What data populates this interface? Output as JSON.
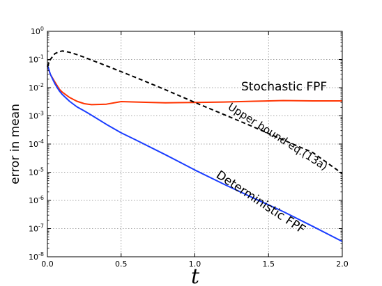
{
  "chart_data": {
    "type": "line",
    "xlabel": "t",
    "ylabel": "error in mean",
    "xscale": "linear",
    "yscale": "log",
    "xlim": [
      0.0,
      2.0
    ],
    "ylim": [
      1e-08,
      1
    ],
    "grid": true,
    "x_ticks": [
      "0.0",
      "0.5",
      "1.0",
      "1.5",
      "2.0"
    ],
    "y_ticks": [
      {
        "base": "10",
        "exp": "-8"
      },
      {
        "base": "10",
        "exp": "-7"
      },
      {
        "base": "10",
        "exp": "-6"
      },
      {
        "base": "10",
        "exp": "-5"
      },
      {
        "base": "10",
        "exp": "-4"
      },
      {
        "base": "10",
        "exp": "-3"
      },
      {
        "base": "10",
        "exp": "-2"
      },
      {
        "base": "10",
        "exp": "-1"
      },
      {
        "base": "10",
        "exp": "0"
      }
    ],
    "series": [
      {
        "name": "Stochastic FPF",
        "color": "#ff3300",
        "style": "solid",
        "x": [
          0.0,
          0.02,
          0.05,
          0.08,
          0.1,
          0.15,
          0.2,
          0.25,
          0.3,
          0.4,
          0.5,
          0.6,
          0.8,
          1.0,
          1.2,
          1.4,
          1.6,
          1.8,
          2.0
        ],
        "y": [
          0.06,
          0.03,
          0.016,
          0.009,
          0.007,
          0.0045,
          0.0033,
          0.0027,
          0.0025,
          0.0026,
          0.0032,
          0.0031,
          0.0029,
          0.003,
          0.0031,
          0.0033,
          0.0035,
          0.0034,
          0.0034
        ]
      },
      {
        "name": "Deterministic FPF",
        "color": "#1a3dff",
        "style": "solid",
        "x": [
          0.0,
          0.02,
          0.05,
          0.08,
          0.1,
          0.15,
          0.2,
          0.25,
          0.3,
          0.4,
          0.5,
          0.6,
          0.8,
          1.0,
          1.2,
          1.4,
          1.6,
          1.8,
          2.0
        ],
        "y": [
          0.065,
          0.03,
          0.014,
          0.0078,
          0.0058,
          0.0033,
          0.0021,
          0.0015,
          0.00105,
          0.0005,
          0.00025,
          0.00014,
          4.2e-05,
          1.2e-05,
          3.7e-06,
          1.2e-06,
          4e-07,
          1.2e-07,
          3.5e-08
        ]
      },
      {
        "name": "Upper bound eq.(13a)",
        "color": "#000000",
        "style": "dashed",
        "x": [
          0.0,
          0.02,
          0.05,
          0.08,
          0.1,
          0.12,
          0.15,
          0.2,
          0.25,
          0.3,
          0.4,
          0.5,
          0.6,
          0.8,
          1.0,
          1.2,
          1.4,
          1.6,
          1.8,
          2.0
        ],
        "y": [
          0.055,
          0.1,
          0.16,
          0.19,
          0.2,
          0.195,
          0.18,
          0.15,
          0.12,
          0.095,
          0.06,
          0.037,
          0.023,
          0.0085,
          0.003,
          0.0011,
          0.0004,
          0.00014,
          5e-05,
          9e-06
        ]
      }
    ],
    "annotations": [
      {
        "text": "Stochastic FPF",
        "series": 0
      },
      {
        "text": "Upper bound eq.(13a)",
        "series": 2
      },
      {
        "text": "Deterministic FPF",
        "series": 1
      }
    ]
  }
}
